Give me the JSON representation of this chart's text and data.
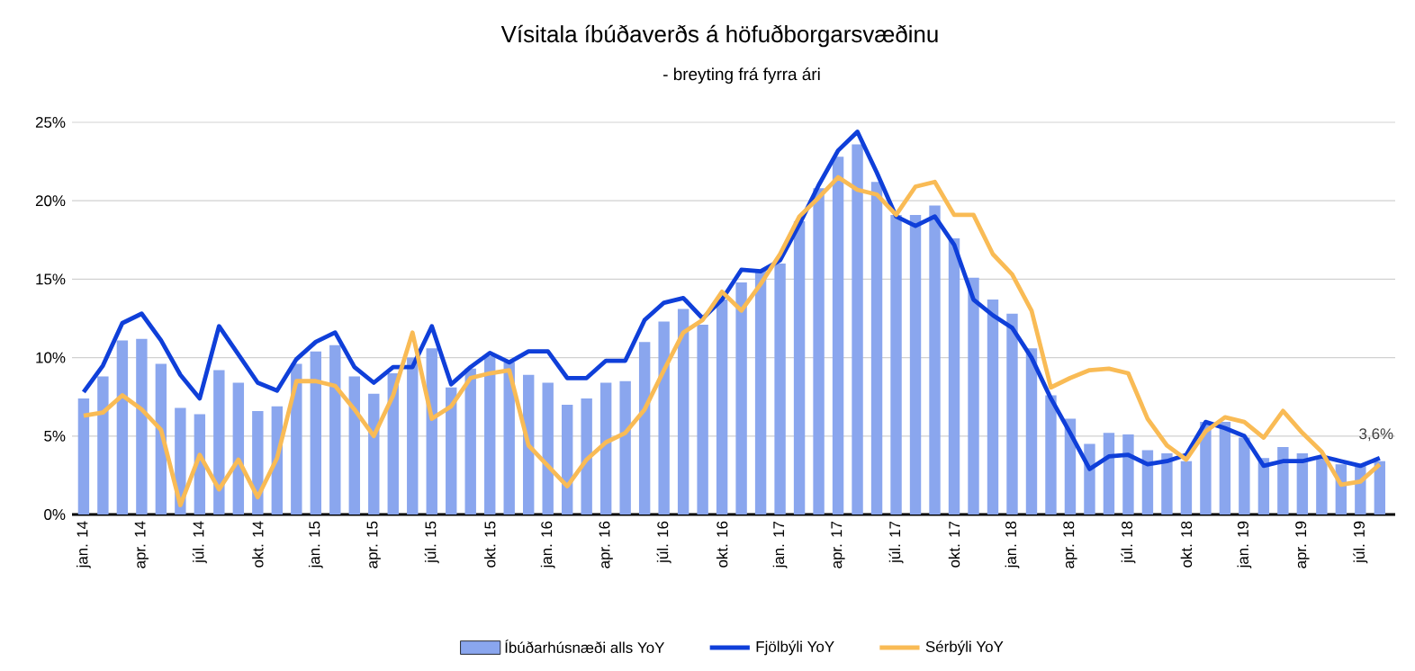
{
  "chart_data": {
    "type": "bar",
    "title": "Vísitala íbúðaverðs á höfuðborgarsvæðinu",
    "subtitle": "- breyting frá fyrra ári",
    "categories": [
      "jan. 14",
      null,
      null,
      "apr. 14",
      null,
      null,
      "júl. 14",
      null,
      null,
      "okt. 14",
      null,
      null,
      "jan. 15",
      null,
      null,
      "apr. 15",
      null,
      null,
      "júl. 15",
      null,
      null,
      "okt. 15",
      null,
      null,
      "jan. 16",
      null,
      null,
      "apr. 16",
      null,
      null,
      "júl. 16",
      null,
      null,
      "okt. 16",
      null,
      null,
      "jan. 17",
      null,
      null,
      "apr. 17",
      null,
      null,
      "júl. 17",
      null,
      null,
      "okt. 17",
      null,
      null,
      "jan. 18",
      null,
      null,
      "apr. 18",
      null,
      null,
      "júl. 18",
      null,
      null,
      "okt. 18",
      null,
      null,
      "jan. 19",
      null,
      null,
      "apr. 19",
      null,
      null,
      "júl. 19",
      null
    ],
    "series": [
      {
        "name": "Íbúðarhúsnæði alls YoY",
        "color": "#8aa6ee",
        "values": [
          7.4,
          8.8,
          11.1,
          11.2,
          9.6,
          6.8,
          6.4,
          9.2,
          8.4,
          6.6,
          6.9,
          9.6,
          10.4,
          10.8,
          8.8,
          7.7,
          9.0,
          10.0,
          10.6,
          8.1,
          9.3,
          10.1,
          9.7,
          8.9,
          8.4,
          7.0,
          7.4,
          8.4,
          8.5,
          11.0,
          12.3,
          13.1,
          12.1,
          13.7,
          14.8,
          15.6,
          16.0,
          18.7,
          20.8,
          22.8,
          23.6,
          21.2,
          19.1,
          19.1,
          19.7,
          17.6,
          15.1,
          13.7,
          12.8,
          10.6,
          7.6,
          6.1,
          4.5,
          5.2,
          5.1,
          4.1,
          3.9,
          3.4,
          5.9,
          5.9,
          4.9,
          3.6,
          4.3,
          3.9,
          3.6,
          3.2,
          3.1,
          3.4
        ]
      },
      {
        "name": "Fjölbýli YoY",
        "type": "line",
        "color": "#0f3fd9",
        "values": [
          7.8,
          9.5,
          12.2,
          12.8,
          11.1,
          8.9,
          7.4,
          12.0,
          10.2,
          8.4,
          7.9,
          9.9,
          11.0,
          11.6,
          9.4,
          8.4,
          9.4,
          9.4,
          12.0,
          8.3,
          9.4,
          10.3,
          9.7,
          10.4,
          10.4,
          8.7,
          8.7,
          9.8,
          9.8,
          12.4,
          13.5,
          13.8,
          12.5,
          13.7,
          15.6,
          15.5,
          16.2,
          18.5,
          21.0,
          23.2,
          24.4,
          21.8,
          19.0,
          18.4,
          19.0,
          17.2,
          13.7,
          12.7,
          11.9,
          10.0,
          7.4,
          5.2,
          2.9,
          3.7,
          3.8,
          3.2,
          3.4,
          3.8,
          5.9,
          5.5,
          5.0,
          3.1,
          3.4,
          3.4,
          3.7,
          3.4,
          3.1,
          3.6
        ]
      },
      {
        "name": "Sérbýli YoY",
        "type": "line",
        "color": "#f9bb55",
        "values": [
          6.3,
          6.5,
          7.6,
          6.7,
          5.4,
          0.6,
          3.8,
          1.6,
          3.5,
          1.1,
          3.6,
          8.5,
          8.5,
          8.2,
          6.7,
          5.0,
          7.6,
          11.6,
          6.1,
          6.9,
          8.7,
          9.0,
          9.2,
          4.4,
          3.1,
          1.8,
          3.5,
          4.6,
          5.2,
          6.7,
          9.2,
          11.6,
          12.4,
          14.2,
          13.0,
          14.7,
          16.6,
          19.0,
          20.2,
          21.5,
          20.7,
          20.4,
          19.1,
          20.9,
          21.2,
          19.1,
          19.1,
          16.6,
          15.3,
          13.0,
          8.1,
          8.7,
          9.2,
          9.3,
          9.0,
          6.1,
          4.4,
          3.5,
          5.3,
          6.2,
          5.9,
          4.9,
          6.6,
          5.2,
          4.0,
          1.9,
          2.1,
          3.2
        ]
      }
    ],
    "ylim": [
      0,
      25
    ],
    "yticks": [
      {
        "value": 0,
        "label": "0%"
      },
      {
        "value": 5,
        "label": "5%"
      },
      {
        "value": 10,
        "label": "10%"
      },
      {
        "value": 15,
        "label": "15%"
      },
      {
        "value": 20,
        "label": "20%"
      },
      {
        "value": 25,
        "label": "25%"
      }
    ],
    "grid": "y",
    "legend": "bottom",
    "marker": "none",
    "line_style": "solid",
    "annotations": [
      {
        "text": "3,6%",
        "y": 3.6
      }
    ]
  }
}
